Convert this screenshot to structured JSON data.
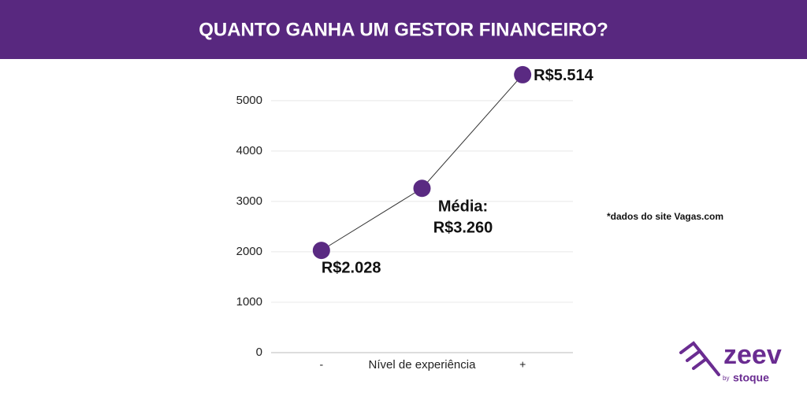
{
  "chart_data": {
    "type": "line",
    "title": "QUANTO GANHA UM GESTOR FINANCEIRO?",
    "categories": [
      "-",
      null,
      "+"
    ],
    "x_label": "Nível de experiência",
    "values": [
      2028,
      3260,
      5514
    ],
    "value_labels": [
      "R$2.028",
      "R$3.260",
      "R$5.514"
    ],
    "annotation": "Média:",
    "note": "*dados do site Vagas.com",
    "color": "#5a2a82",
    "ylim": [
      0,
      5700
    ],
    "yticks": [
      0,
      1000,
      2000,
      3000,
      4000,
      5000
    ],
    "grid": true
  },
  "brand": {
    "name": "zeev",
    "by": "by",
    "company": "stoque"
  }
}
